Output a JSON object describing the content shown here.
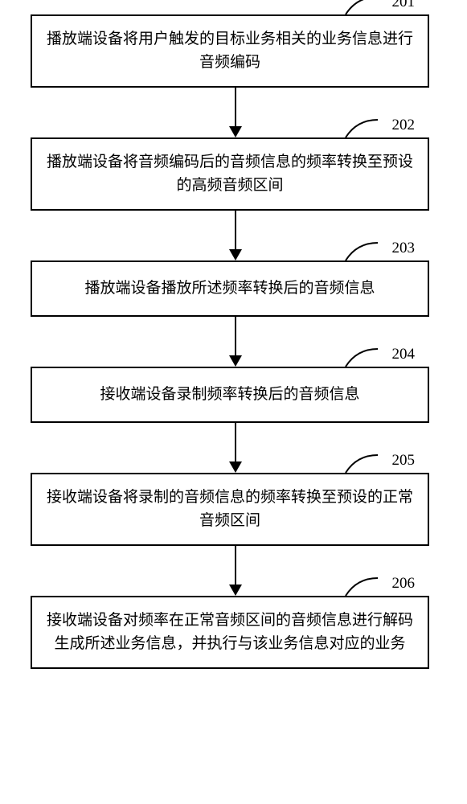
{
  "diagram": {
    "type": "flowchart",
    "background_color": "#ffffff",
    "box_border_color": "#000000",
    "box_border_width": 2,
    "text_color": "#000000",
    "font_size_pt": 14,
    "arrow_color": "#000000",
    "steps": [
      {
        "id": "201",
        "text": "播放端设备将用户触发的目标业务相关的业务信息进行音频编码",
        "height": 90
      },
      {
        "id": "202",
        "text": "播放端设备将音频编码后的音频信息的频率转换至预设的高频音频区间",
        "height": 90
      },
      {
        "id": "203",
        "text": "播放端设备播放所述频率转换后的音频信息",
        "height": 70
      },
      {
        "id": "204",
        "text": "接收端设备录制频率转换后的音频信息",
        "height": 70
      },
      {
        "id": "205",
        "text": "接收端设备将录制的音频信息的频率转换至预设的正常音频区间",
        "height": 90
      },
      {
        "id": "206",
        "text": "接收端设备对频率在正常音频区间的音频信息进行解码生成所述业务信息，并执行与该业务信息对应的业务",
        "height": 90
      }
    ]
  }
}
